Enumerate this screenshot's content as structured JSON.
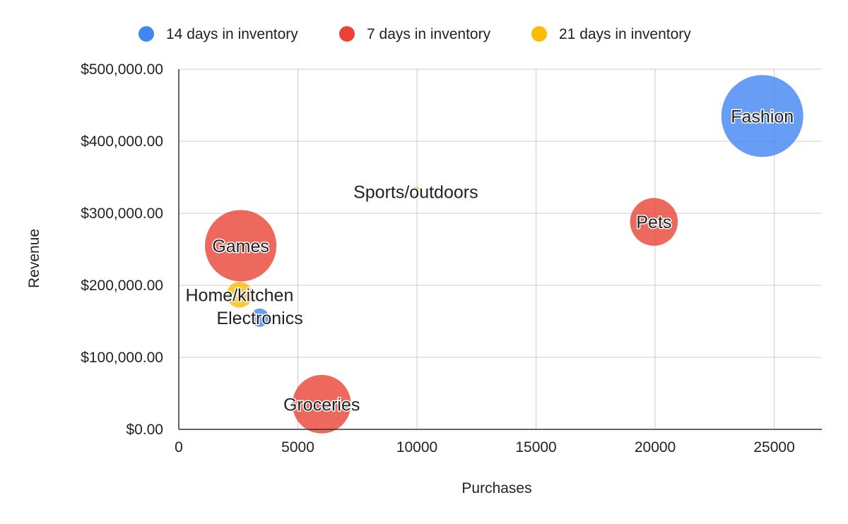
{
  "chart_data": {
    "type": "bubble",
    "xlabel": "Purchases",
    "ylabel": "Revenue",
    "xlim": [
      0,
      27000
    ],
    "ylim": [
      0,
      500000
    ],
    "x_ticks": [
      0,
      5000,
      10000,
      15000,
      20000,
      25000
    ],
    "x_tick_labels": [
      "0",
      "5000",
      "10000",
      "15000",
      "20000",
      "25000"
    ],
    "y_ticks": [
      0,
      100000,
      200000,
      300000,
      400000,
      500000
    ],
    "y_tick_labels": [
      "$0.00",
      "$100,000.00",
      "$200,000.00",
      "$300,000.00",
      "$400,000.00",
      "$500,000.00"
    ],
    "grid": true,
    "legend_position": "top",
    "series": [
      {
        "name": "14 days in inventory",
        "color": "#4285f4",
        "points": [
          {
            "label": "Fashion",
            "x": 24500,
            "y": 435000,
            "size": 100
          },
          {
            "label": "Electronics",
            "x": 3400,
            "y": 155000,
            "size": 5
          }
        ]
      },
      {
        "name": "7 days in inventory",
        "color": "#ea4335",
        "points": [
          {
            "label": "Games",
            "x": 2600,
            "y": 255000,
            "size": 76
          },
          {
            "label": "Pets",
            "x": 19950,
            "y": 288000,
            "size": 34
          },
          {
            "label": "Groceries",
            "x": 6000,
            "y": 35000,
            "size": 51
          }
        ]
      },
      {
        "name": "21 days in inventory",
        "color": "#fbbc04",
        "points": [
          {
            "label": "Home/kitchen",
            "x": 2550,
            "y": 187000,
            "size": 10
          },
          {
            "label": "Sports/outdoors",
            "x": 9950,
            "y": 330000,
            "size": 0.1
          }
        ]
      }
    ]
  }
}
